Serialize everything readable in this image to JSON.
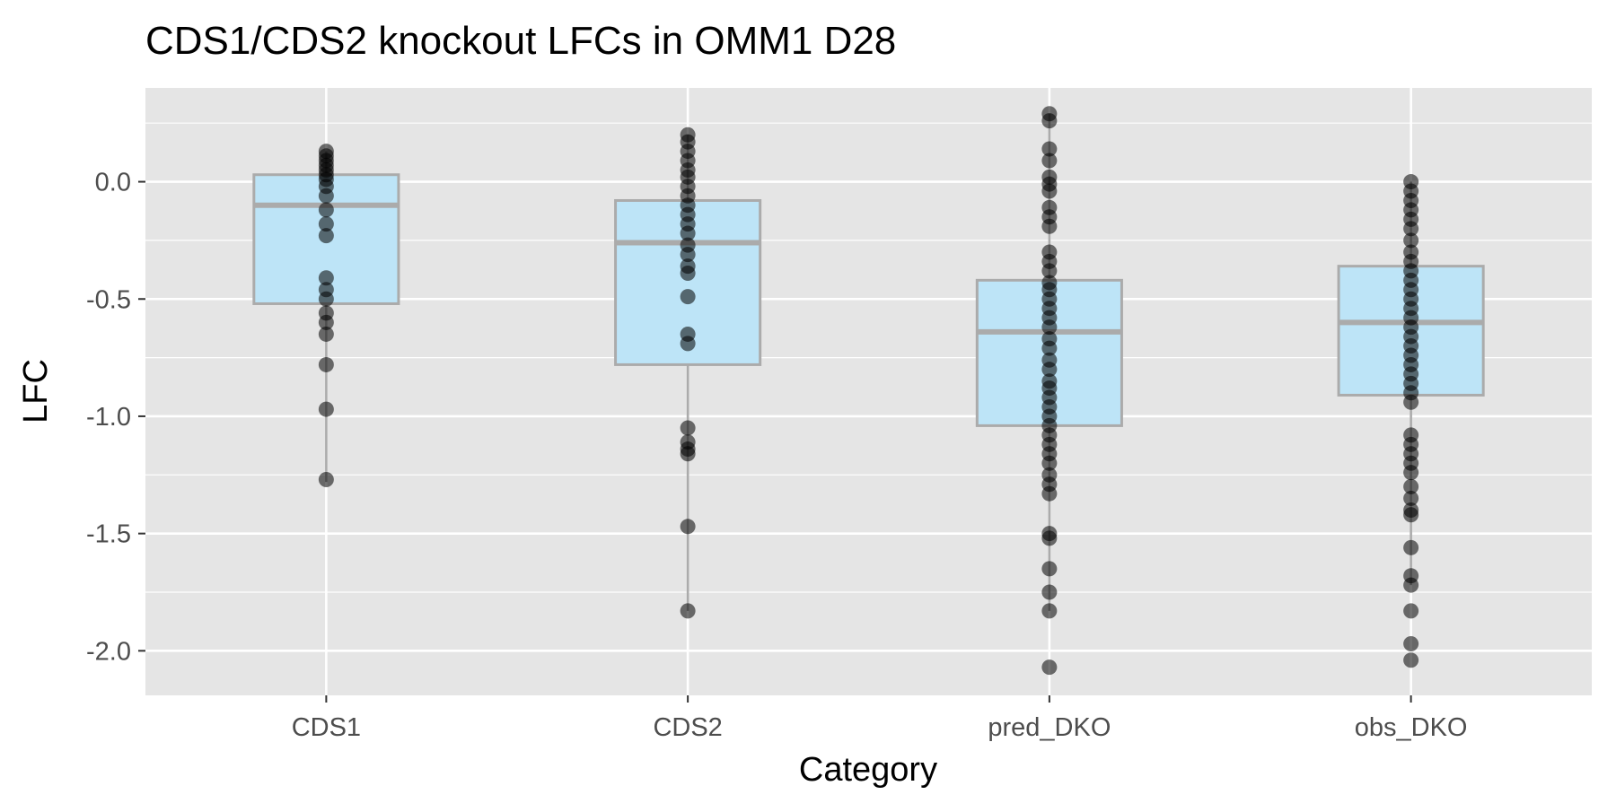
{
  "chart_data": {
    "type": "box",
    "title": "CDS1/CDS2 knockout LFCs in  OMM1 D28",
    "xlabel": "Category",
    "ylabel": "LFC",
    "ylim": [
      -2.19,
      0.4
    ],
    "y_ticks": [
      0.0,
      -0.5,
      -1.0,
      -1.5,
      -2.0
    ],
    "y_tick_labels": [
      "0.0",
      "-0.5",
      "-1.0",
      "-1.5",
      "-2.0"
    ],
    "grid": true,
    "colors": {
      "panel_bg": "#e5e5e5",
      "grid": "#ffffff",
      "box_fill": "#bde4f7",
      "box_stroke": "#ababab",
      "point": "#000000"
    },
    "categories": [
      "CDS1",
      "CDS2",
      "pred_DKO",
      "obs_DKO"
    ],
    "boxes": [
      {
        "category": "CDS1",
        "lower_whisker": -1.28,
        "q1": -0.52,
        "median": -0.1,
        "q3": 0.03,
        "upper_whisker": 0.13
      },
      {
        "category": "CDS2",
        "lower_whisker": -1.83,
        "q1": -0.78,
        "median": -0.26,
        "q3": -0.08,
        "upper_whisker": 0.2
      },
      {
        "category": "pred_DKO",
        "lower_whisker": -1.83,
        "q1": -1.04,
        "median": -0.64,
        "q3": -0.42,
        "upper_whisker": 0.29
      },
      {
        "category": "obs_DKO",
        "lower_whisker": -1.72,
        "q1": -0.91,
        "median": -0.6,
        "q3": -0.36,
        "upper_whisker": 0.0
      }
    ],
    "points": [
      {
        "category": "CDS1",
        "values": [
          0.13,
          0.11,
          0.09,
          0.07,
          0.05,
          0.03,
          0.01,
          -0.02,
          -0.06,
          -0.12,
          -0.18,
          -0.23,
          -0.41,
          -0.46,
          -0.5,
          -0.56,
          -0.6,
          -0.65,
          -0.78,
          -0.97,
          -1.27
        ]
      },
      {
        "category": "CDS2",
        "values": [
          0.2,
          0.17,
          0.13,
          0.09,
          0.05,
          0.02,
          -0.02,
          -0.06,
          -0.1,
          -0.14,
          -0.18,
          -0.22,
          -0.27,
          -0.31,
          -0.36,
          -0.39,
          -0.49,
          -0.65,
          -0.69,
          -1.05,
          -1.11,
          -1.14,
          -1.16,
          -1.47,
          -1.83
        ]
      },
      {
        "category": "pred_DKO",
        "values": [
          0.29,
          0.26,
          0.14,
          0.09,
          0.02,
          -0.01,
          -0.04,
          -0.11,
          -0.15,
          -0.19,
          -0.3,
          -0.34,
          -0.38,
          -0.43,
          -0.46,
          -0.5,
          -0.54,
          -0.58,
          -0.62,
          -0.67,
          -0.71,
          -0.76,
          -0.8,
          -0.85,
          -0.88,
          -0.92,
          -0.96,
          -1.0,
          -1.04,
          -1.08,
          -1.12,
          -1.16,
          -1.2,
          -1.25,
          -1.29,
          -1.33,
          -1.5,
          -1.52,
          -1.65,
          -1.75,
          -1.83,
          -2.07
        ]
      },
      {
        "category": "obs_DKO",
        "values": [
          0.0,
          -0.04,
          -0.08,
          -0.12,
          -0.16,
          -0.2,
          -0.25,
          -0.3,
          -0.34,
          -0.38,
          -0.42,
          -0.46,
          -0.5,
          -0.54,
          -0.58,
          -0.62,
          -0.66,
          -0.7,
          -0.74,
          -0.78,
          -0.82,
          -0.86,
          -0.9,
          -0.94,
          -1.08,
          -1.12,
          -1.16,
          -1.2,
          -1.24,
          -1.3,
          -1.35,
          -1.4,
          -1.42,
          -1.56,
          -1.68,
          -1.72,
          -1.83,
          -1.97,
          -2.04
        ]
      }
    ]
  }
}
